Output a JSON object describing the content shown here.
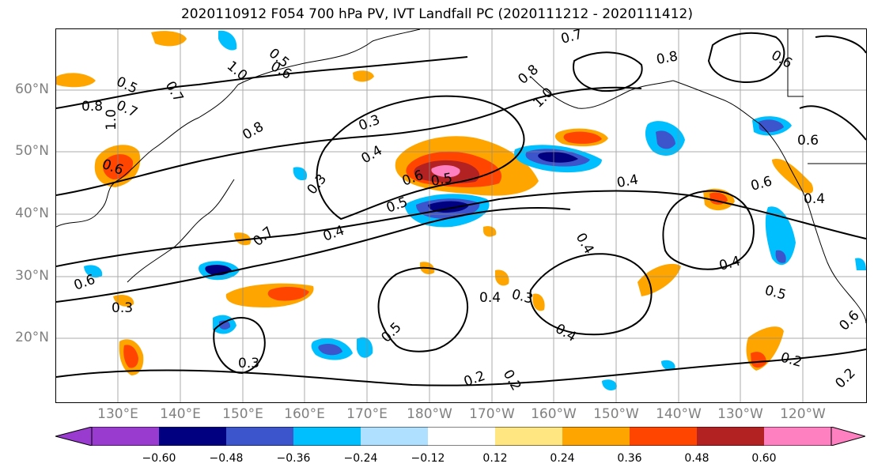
{
  "title": "2020110912 F054 700 hPa PV, IVT Landfall PC (2020111212 - 2020111412)",
  "lat_labels": [
    "60°N",
    "50°N",
    "40°N",
    "30°N",
    "20°N"
  ],
  "lon_labels": [
    "130°E",
    "140°E",
    "150°E",
    "160°E",
    "170°E",
    "180°W",
    "170°W",
    "160°W",
    "150°W",
    "140°W",
    "130°W",
    "120°W"
  ],
  "colorbar": {
    "colors": [
      "#9a3bd0",
      "#000080",
      "#3c55cc",
      "#00bfff",
      "#b0e0ff",
      "#ffffff",
      "#ffe680",
      "#ffa500",
      "#ff4500",
      "#b22222",
      "#ff80c0"
    ],
    "tick_labels": [
      "−0.60",
      "−0.48",
      "−0.36",
      "−0.24",
      "−0.12",
      "0.12",
      "0.24",
      "0.36",
      "0.48",
      "0.60"
    ]
  },
  "contour_labels": [
    "0.5",
    "0.6",
    "0.7",
    "0.8",
    "1.0",
    "0.5",
    "0.7",
    "0.8",
    "1.0",
    "0.6",
    "0.3",
    "0.4",
    "0.6",
    "0.5",
    "0.4",
    "0.3",
    "0.7",
    "0.5",
    "0.4",
    "0.3",
    "0.6",
    "0.3",
    "0.2",
    "0.2",
    "0.4",
    "0.4",
    "0.4",
    "0.6",
    "0.8",
    "1.0",
    "0.7",
    "0.8",
    "0.6",
    "0.6",
    "0.4",
    "0.5",
    "0.6",
    "0.5",
    "0.2",
    "0.2",
    "0.3",
    "0.4"
  ]
}
